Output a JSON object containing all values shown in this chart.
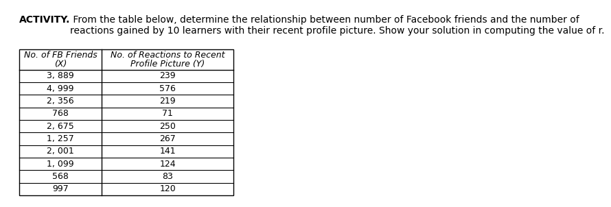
{
  "title_bold": "ACTIVITY.",
  "title_rest": " From the table below, determine the relationship between number of Facebook friends and the number of\nreactions gained by 10 learners with their recent profile picture. Show your solution in computing the value of r.",
  "col1_header_line1": "No. of FB Friends",
  "col1_header_line2": "(X)",
  "col2_header_line1": "No. of Reactions to Recent",
  "col2_header_line2": "Profile Picture (Y)",
  "x_values": [
    "3, 889",
    "4, 999",
    "2, 356",
    "768",
    "2, 675",
    "1, 257",
    "2, 001",
    "1, 099",
    "568",
    "997"
  ],
  "y_values": [
    "239",
    "576",
    "219",
    "71",
    "250",
    "267",
    "141",
    "124",
    "83",
    "120"
  ],
  "bg_color": "#ffffff",
  "text_color": "#000000",
  "header_fontsize": 9.0,
  "data_fontsize": 9.0,
  "title_fontsize": 10.0
}
